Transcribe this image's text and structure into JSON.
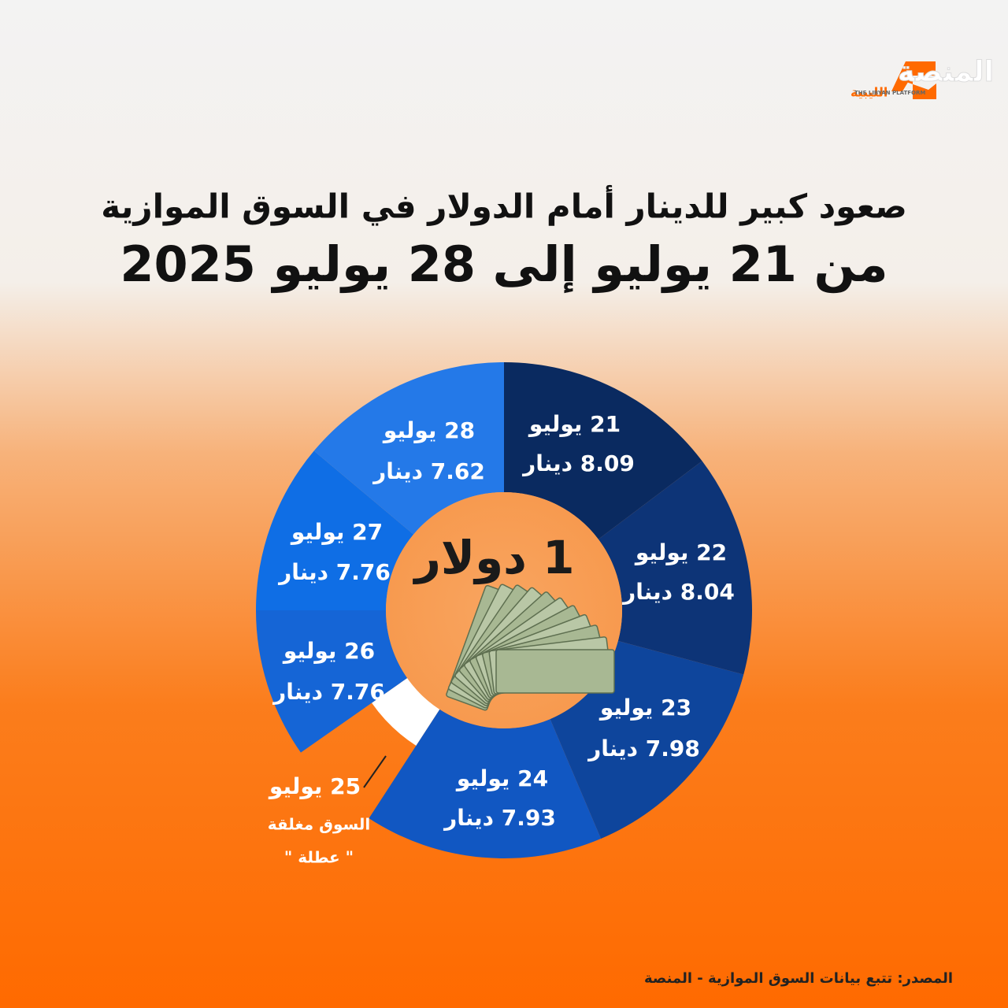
{
  "header": {
    "logo": "المنصة",
    "logo_sub": "الليبية",
    "logo_en": "THE LIBYAN PLATFORM",
    "title_line1": "صعود كبير للدينار أمام الدولار في السوق الموازية",
    "title_line2": "من 21 يوليو إلى 28 يوليو 2025"
  },
  "donut": {
    "center_label": "1 دولار",
    "segments": [
      {
        "date": "21 يوليو",
        "rate": "8.09 دينار"
      },
      {
        "date": "22 يوليو",
        "rate": "8.04 دينار"
      },
      {
        "date": "23 يوليو",
        "rate": "7.98 دينار"
      },
      {
        "date": "24 يوليو",
        "rate": "7.93 دينار"
      },
      {
        "date": "25 يوليو",
        "note": "السوق مغلقة",
        "note2": "\" عطلة \""
      },
      {
        "date": "26 يوليو",
        "rate": "7.76 دينار"
      },
      {
        "date": "27 يوليو",
        "rate": "7.76 دينار"
      },
      {
        "date": "28 يوليو",
        "rate": "7.62 دينار"
      }
    ]
  },
  "footer": {
    "source": "المصدر: تتبع بيانات السوق الموازية - المنصة"
  }
}
